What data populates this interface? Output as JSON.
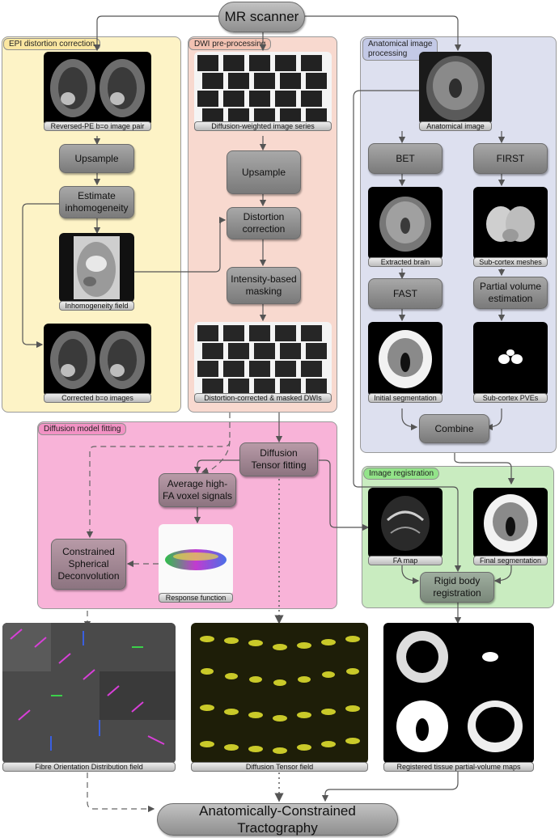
{
  "top": {
    "scanner": "MR scanner"
  },
  "panels": {
    "epi": "EPI distortion correction",
    "dwi": "DWI pre-processing",
    "anat": "Anatomical image\nprocessing",
    "model": "Diffusion model fitting",
    "reg": "Image registration"
  },
  "nodes": {
    "upsample_epi": "Upsample",
    "estimate": "Estimate\ninhomogeneity",
    "upsample_dwi": "Upsample",
    "distortion": "Distortion\ncorrection",
    "masking": "Intensity-based\nmasking",
    "bet": "BET",
    "first": "FIRST",
    "fast": "FAST",
    "pve": "Partial volume\nestimation",
    "combine": "Combine",
    "dt_fit": "Diffusion\nTensor fitting",
    "avg": "Average high-\nFA voxel signals",
    "csd": "Constrained\nSpherical\nDeconvolution",
    "rigid": "Rigid body\nregistration",
    "act": "Anatomically-Constrained Tractography"
  },
  "captions": {
    "rpe": "Reversed-PE b=o image pair",
    "inhom": "Inhomogeneity field",
    "corrected": "Corrected b=o images",
    "dwi_series": "Diffusion-weighted image series",
    "dwi_masked": "Distortion-corrected & masked DWIs",
    "anat_img": "Anatomical image",
    "extracted": "Extracted brain",
    "meshes": "Sub-cortex meshes",
    "init_seg": "Initial segmentation",
    "sub_pves": "Sub-cortex PVEs",
    "fa": "FA map",
    "final_seg": "Final segmentation",
    "response": "Response function",
    "fod": "Fibre Orientation Distribution field",
    "dt_field": "Diffusion Tensor field",
    "reg_maps": "Registered tissue partial-volume maps"
  },
  "colors": {
    "epi_bg": "#fdf3c6",
    "dwi_bg": "#f8d9cf",
    "anat_bg": "#dde0ef",
    "model_bg": "#f8b3d8",
    "reg_bg": "#c9ecc0",
    "epi_title": "#fbe7a1",
    "dwi_title": "#f2c2b2",
    "anat_title": "#c3c9e6",
    "model_title": "#f292c4",
    "reg_title": "#93e489",
    "tensor_yellow": "#e8e830"
  }
}
